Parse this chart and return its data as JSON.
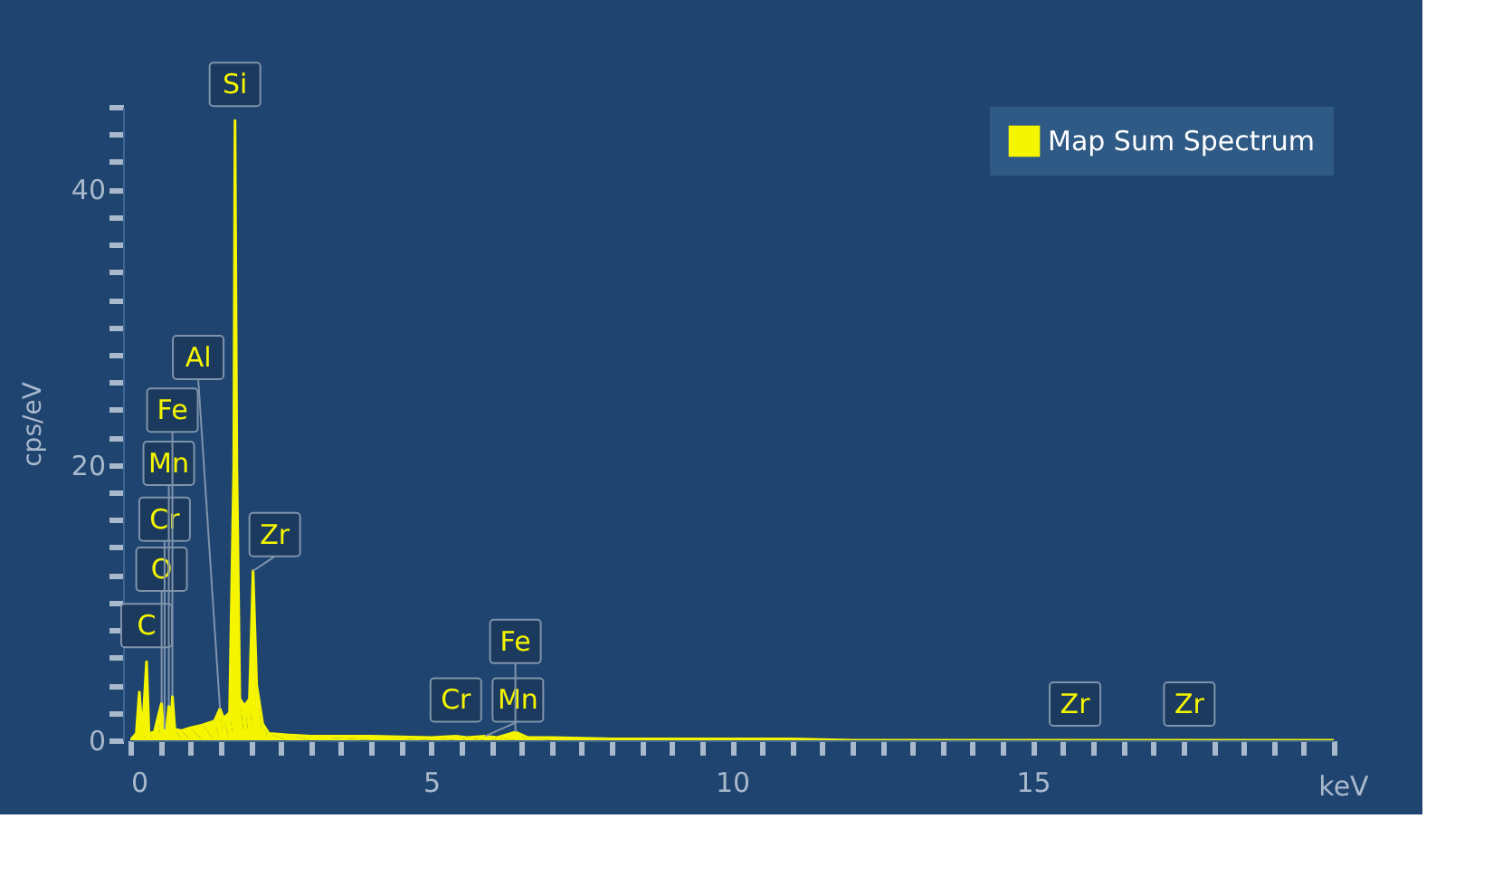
{
  "chart_data": {
    "type": "area",
    "xlabel": "keV",
    "ylabel": "cps/eV",
    "x": [
      0.0,
      0.1,
      0.15,
      0.2,
      0.27,
      0.31,
      0.4,
      0.45,
      0.52,
      0.55,
      0.57,
      0.6,
      0.64,
      0.67,
      0.7,
      0.74,
      0.85,
      1.0,
      1.2,
      1.4,
      1.49,
      1.55,
      1.65,
      1.72,
      1.74,
      1.77,
      1.82,
      1.9,
      1.98,
      2.04,
      2.1,
      2.2,
      2.3,
      2.6,
      3,
      4,
      5,
      5.41,
      5.6,
      5.9,
      6.1,
      6.4,
      6.6,
      7,
      8,
      9,
      10,
      11,
      12,
      13,
      15.7,
      17.6,
      20
    ],
    "series": [
      {
        "name": "Map Sum Spectrum",
        "color": "#f5f500",
        "values": [
          0,
          0.5,
          3.5,
          0.5,
          5.7,
          0.5,
          0.6,
          1.5,
          2.7,
          0.6,
          0.8,
          0.7,
          2.5,
          0.8,
          3.2,
          0.8,
          0.7,
          0.9,
          1.1,
          1.4,
          2.3,
          1.6,
          2.0,
          20,
          45,
          20,
          3,
          2.5,
          3,
          12.3,
          4,
          1.2,
          0.5,
          0.4,
          0.3,
          0.3,
          0.2,
          0.3,
          0.2,
          0.3,
          0.2,
          0.6,
          0.2,
          0.2,
          0.1,
          0.1,
          0.1,
          0.1,
          0,
          0,
          0,
          0,
          0
        ]
      }
    ],
    "xlim": [
      0,
      20
    ],
    "ylim": [
      0,
      46
    ],
    "xticks": [
      0,
      {
        "value": 0.5,
        "label": null
      },
      {
        "value": 1,
        "label": null
      },
      {
        "value": 1.5,
        "label": null
      },
      {
        "value": 2,
        "label": null
      },
      {
        "value": 2.5,
        "label": null
      },
      {
        "value": 3,
        "label": null
      },
      {
        "value": 3.5,
        "label": null
      },
      {
        "value": 4,
        "label": null
      },
      {
        "value": 4.5,
        "label": null
      },
      5,
      {
        "value": 5.5,
        "label": null
      },
      {
        "value": 6,
        "label": null
      },
      {
        "value": 6.5,
        "label": null
      },
      {
        "value": 7,
        "label": null
      },
      {
        "value": 7.5,
        "label": null
      },
      {
        "value": 8,
        "label": null
      },
      {
        "value": 8.5,
        "label": null
      },
      {
        "value": 9,
        "label": null
      },
      {
        "value": 9.5,
        "label": null
      },
      10,
      {
        "value": 10.5,
        "label": null
      },
      {
        "value": 11,
        "label": null
      },
      {
        "value": 11.5,
        "label": null
      },
      {
        "value": 12,
        "label": null
      },
      {
        "value": 12.5,
        "label": null
      },
      {
        "value": 13,
        "label": null
      },
      {
        "value": 13.5,
        "label": null
      },
      {
        "value": 14,
        "label": null
      },
      {
        "value": 14.5,
        "label": null
      },
      15,
      {
        "value": 15.5,
        "label": null
      },
      {
        "value": 16,
        "label": null
      },
      {
        "value": 16.5,
        "label": null
      },
      {
        "value": 17,
        "label": null
      },
      {
        "value": 17.5,
        "label": null
      },
      {
        "value": 18,
        "label": null
      },
      {
        "value": 18.5,
        "label": null
      },
      {
        "value": 19,
        "label": null
      },
      {
        "value": 19.5,
        "label": null
      },
      {
        "value": 20,
        "label": null
      }
    ],
    "yticks": [
      0,
      {
        "value": 2,
        "label": null
      },
      {
        "value": 4,
        "label": null
      },
      {
        "value": 6,
        "label": null
      },
      {
        "value": 8,
        "label": null
      },
      {
        "value": 10,
        "label": null
      },
      {
        "value": 12,
        "label": null
      },
      {
        "value": 14,
        "label": null
      },
      {
        "value": 16,
        "label": null
      },
      {
        "value": 18,
        "label": null
      },
      20,
      {
        "value": 22,
        "label": null
      },
      {
        "value": 24,
        "label": null
      },
      {
        "value": 26,
        "label": null
      },
      {
        "value": 28,
        "label": null
      },
      {
        "value": 30,
        "label": null
      },
      {
        "value": 32,
        "label": null
      },
      {
        "value": 34,
        "label": null
      },
      {
        "value": 36,
        "label": null
      },
      {
        "value": 38,
        "label": null
      },
      40,
      {
        "value": 42,
        "label": null
      },
      {
        "value": 44,
        "label": null
      },
      {
        "value": 46,
        "label": null
      }
    ],
    "annotations": [
      {
        "text": "C",
        "x": 0.27,
        "y": 5.7
      },
      {
        "text": "O",
        "x": 0.52,
        "y": 2.7
      },
      {
        "text": "Cr",
        "x": 0.57,
        "y": 0.8
      },
      {
        "text": "Mn",
        "x": 0.64,
        "y": 2.5
      },
      {
        "text": "Fe",
        "x": 0.7,
        "y": 3.2
      },
      {
        "text": "Al",
        "x": 1.49,
        "y": 2.3
      },
      {
        "text": "Si",
        "x": 1.74,
        "y": 45
      },
      {
        "text": "Zr",
        "x": 2.04,
        "y": 12.3
      },
      {
        "text": "Cr",
        "x": 5.41,
        "y": 0.3
      },
      {
        "text": "Mn",
        "x": 5.9,
        "y": 0.3
      },
      {
        "text": "Fe",
        "x": 6.4,
        "y": 0.6
      },
      {
        "text": "Zr",
        "x": 15.7,
        "y": 0
      },
      {
        "text": "Zr",
        "x": 17.6,
        "y": 0
      }
    ],
    "grid": false,
    "legend": "top right",
    "line_style": "solid"
  }
}
